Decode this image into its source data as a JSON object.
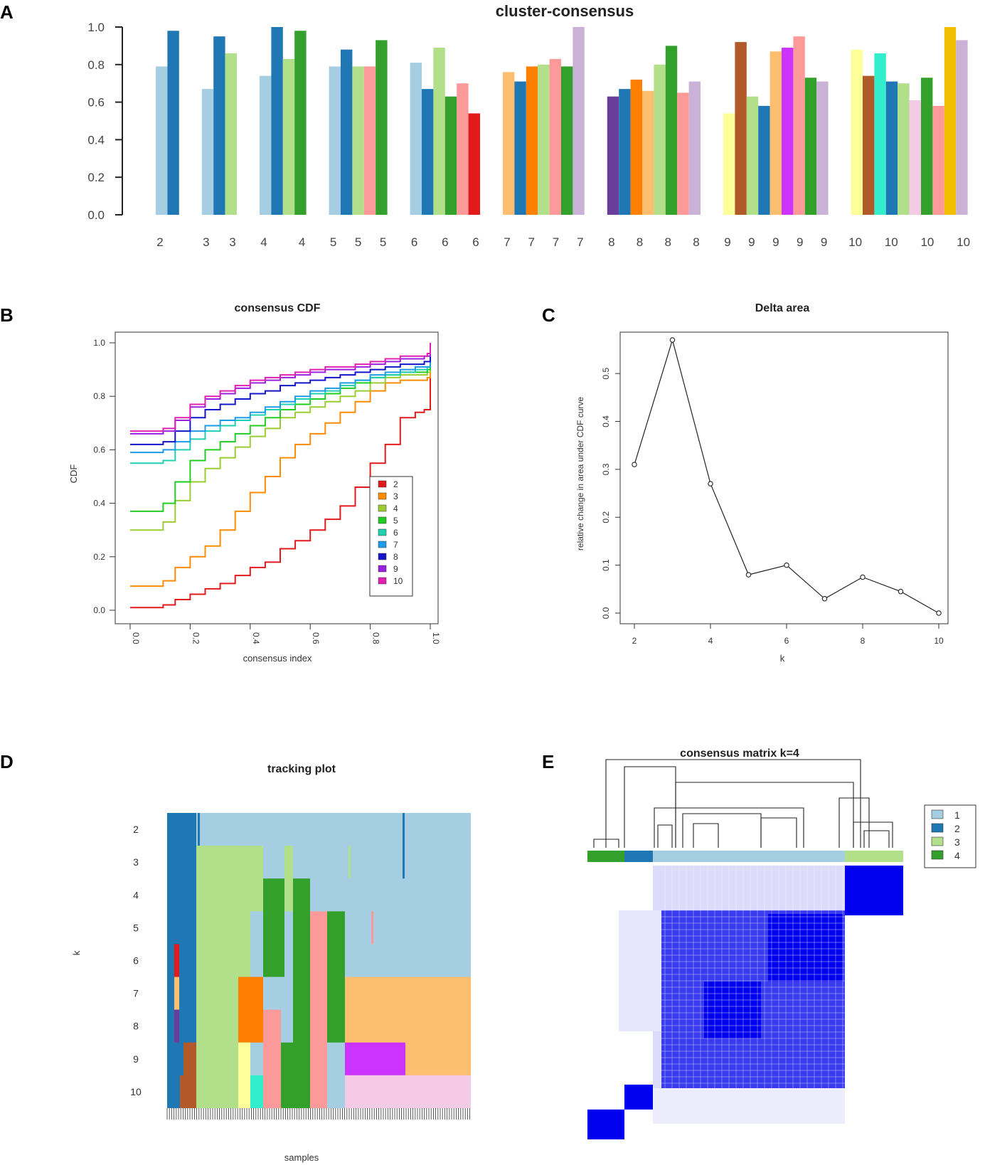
{
  "panel_labels": [
    "A",
    "B",
    "C",
    "D",
    "E"
  ],
  "chart_data": [
    {
      "id": "A",
      "type": "bar",
      "title": "cluster-consensus",
      "ylim": [
        0,
        1
      ],
      "yticks": [
        "0.0",
        "0.2",
        "0.4",
        "0.6",
        "0.8",
        "1.0"
      ],
      "groups": [
        {
          "k": 2,
          "bars": [
            {
              "cluster": 1,
              "value": 0.79,
              "color": "#a6cee3"
            },
            {
              "cluster": 2,
              "value": 0.98,
              "color": "#1f78b4"
            }
          ],
          "tick_labels": [
            "2"
          ]
        },
        {
          "k": 3,
          "bars": [
            {
              "cluster": 1,
              "value": 0.67,
              "color": "#a6cee3"
            },
            {
              "cluster": 2,
              "value": 0.95,
              "color": "#1f78b4"
            },
            {
              "cluster": 3,
              "value": 0.86,
              "color": "#b2df8a"
            }
          ],
          "tick_labels": [
            "3",
            "3"
          ]
        },
        {
          "k": 4,
          "bars": [
            {
              "cluster": 1,
              "value": 0.74,
              "color": "#a6cee3"
            },
            {
              "cluster": 2,
              "value": 1.0,
              "color": "#1f78b4"
            },
            {
              "cluster": 3,
              "value": 0.83,
              "color": "#b2df8a"
            },
            {
              "cluster": 4,
              "value": 0.98,
              "color": "#33a02c"
            }
          ],
          "tick_labels": [
            "4",
            "4"
          ]
        },
        {
          "k": 5,
          "bars": [
            {
              "cluster": 1,
              "value": 0.79,
              "color": "#a6cee3"
            },
            {
              "cluster": 2,
              "value": 0.88,
              "color": "#1f78b4"
            },
            {
              "cluster": 3,
              "value": 0.79,
              "color": "#b2df8a"
            },
            {
              "cluster": 4,
              "value": 0.79,
              "color": "#fb9a99"
            },
            {
              "cluster": 5,
              "value": 0.93,
              "color": "#33a02c"
            }
          ],
          "tick_labels": [
            "5",
            "5",
            "5"
          ]
        },
        {
          "k": 6,
          "bars": [
            {
              "cluster": 1,
              "value": 0.81,
              "color": "#a6cee3"
            },
            {
              "cluster": 2,
              "value": 0.67,
              "color": "#1f78b4"
            },
            {
              "cluster": 3,
              "value": 0.89,
              "color": "#b2df8a"
            },
            {
              "cluster": 4,
              "value": 0.63,
              "color": "#33a02c"
            },
            {
              "cluster": 5,
              "value": 0.7,
              "color": "#fb9a99"
            },
            {
              "cluster": 6,
              "value": 0.54,
              "color": "#e31a1c"
            }
          ],
          "tick_labels": [
            "6",
            "6",
            "6"
          ]
        },
        {
          "k": 7,
          "bars": [
            {
              "cluster": 1,
              "value": 0.76,
              "color": "#fdbf6f"
            },
            {
              "cluster": 2,
              "value": 0.71,
              "color": "#1f78b4"
            },
            {
              "cluster": 3,
              "value": 0.79,
              "color": "#ff7f00"
            },
            {
              "cluster": 4,
              "value": 0.8,
              "color": "#b2df8a"
            },
            {
              "cluster": 5,
              "value": 0.83,
              "color": "#fb9a99"
            },
            {
              "cluster": 6,
              "value": 0.79,
              "color": "#33a02c"
            },
            {
              "cluster": 7,
              "value": 1.0,
              "color": "#cab2d6"
            }
          ],
          "tick_labels": [
            "7",
            "7",
            "7",
            "7"
          ]
        },
        {
          "k": 8,
          "bars": [
            {
              "cluster": 1,
              "value": 0.63,
              "color": "#6a3d9a"
            },
            {
              "cluster": 2,
              "value": 0.67,
              "color": "#1f78b4"
            },
            {
              "cluster": 3,
              "value": 0.72,
              "color": "#ff7f00"
            },
            {
              "cluster": 4,
              "value": 0.66,
              "color": "#fdbf6f"
            },
            {
              "cluster": 5,
              "value": 0.8,
              "color": "#b2df8a"
            },
            {
              "cluster": 6,
              "value": 0.9,
              "color": "#33a02c"
            },
            {
              "cluster": 7,
              "value": 0.65,
              "color": "#fb9a99"
            },
            {
              "cluster": 8,
              "value": 0.71,
              "color": "#cab2d6"
            }
          ],
          "tick_labels": [
            "8",
            "8",
            "8",
            "8"
          ]
        },
        {
          "k": 9,
          "bars": [
            {
              "cluster": 1,
              "value": 0.54,
              "color": "#ffff99"
            },
            {
              "cluster": 2,
              "value": 0.92,
              "color": "#b15928"
            },
            {
              "cluster": 3,
              "value": 0.63,
              "color": "#b2df8a"
            },
            {
              "cluster": 4,
              "value": 0.58,
              "color": "#1f78b4"
            },
            {
              "cluster": 5,
              "value": 0.87,
              "color": "#fdbf6f"
            },
            {
              "cluster": 6,
              "value": 0.89,
              "color": "#cc33ff"
            },
            {
              "cluster": 7,
              "value": 0.95,
              "color": "#fb9a99"
            },
            {
              "cluster": 8,
              "value": 0.73,
              "color": "#33a02c"
            },
            {
              "cluster": 9,
              "value": 0.71,
              "color": "#cab2d6"
            }
          ],
          "tick_labels": [
            "9",
            "9",
            "9",
            "9",
            "9"
          ]
        },
        {
          "k": 10,
          "bars": [
            {
              "cluster": 1,
              "value": 0.88,
              "color": "#ffff99"
            },
            {
              "cluster": 2,
              "value": 0.74,
              "color": "#b15928"
            },
            {
              "cluster": 3,
              "value": 0.86,
              "color": "#33eecc"
            },
            {
              "cluster": 4,
              "value": 0.71,
              "color": "#1f78b4"
            },
            {
              "cluster": 5,
              "value": 0.7,
              "color": "#b2df8a"
            },
            {
              "cluster": 6,
              "value": 0.61,
              "color": "#f4cae4"
            },
            {
              "cluster": 7,
              "value": 0.73,
              "color": "#33a02c"
            },
            {
              "cluster": 8,
              "value": 0.58,
              "color": "#fb9a99"
            },
            {
              "cluster": 9,
              "value": 1.0,
              "color": "#f0c000"
            },
            {
              "cluster": 10,
              "value": 0.93,
              "color": "#cab2d6"
            }
          ],
          "tick_labels": [
            "10",
            "10",
            "10",
            "10"
          ]
        }
      ]
    },
    {
      "id": "B",
      "type": "line",
      "title": "consensus CDF",
      "xlabel": "consensus index",
      "ylabel": "CDF",
      "xlim": [
        0,
        1
      ],
      "ylim": [
        0,
        1
      ],
      "xticks": [
        "0.0",
        "0.2",
        "0.4",
        "0.6",
        "0.8",
        "1.0"
      ],
      "yticks": [
        "0.0",
        "0.2",
        "0.4",
        "0.6",
        "0.8",
        "1.0"
      ],
      "legend_position": "bottom-right",
      "x": [
        0,
        0.1,
        0.11,
        0.15,
        0.2,
        0.25,
        0.3,
        0.35,
        0.4,
        0.45,
        0.5,
        0.55,
        0.6,
        0.65,
        0.7,
        0.75,
        0.8,
        0.85,
        0.9,
        0.95,
        0.98,
        0.99,
        1.0
      ],
      "series": [
        {
          "name": "2",
          "color": "#e31a1c",
          "values": [
            0.01,
            0.01,
            0.02,
            0.04,
            0.06,
            0.08,
            0.1,
            0.13,
            0.16,
            0.18,
            0.23,
            0.26,
            0.3,
            0.34,
            0.39,
            0.46,
            0.55,
            0.62,
            0.72,
            0.74,
            0.75,
            0.75,
            1.0
          ]
        },
        {
          "name": "3",
          "color": "#ff8c00",
          "values": [
            0.09,
            0.09,
            0.11,
            0.16,
            0.2,
            0.24,
            0.3,
            0.37,
            0.44,
            0.5,
            0.57,
            0.62,
            0.66,
            0.7,
            0.74,
            0.78,
            0.82,
            0.85,
            0.86,
            0.86,
            0.86,
            0.87,
            1.0
          ]
        },
        {
          "name": "4",
          "color": "#9acd32",
          "values": [
            0.3,
            0.3,
            0.33,
            0.41,
            0.48,
            0.53,
            0.57,
            0.61,
            0.65,
            0.68,
            0.72,
            0.74,
            0.76,
            0.78,
            0.8,
            0.82,
            0.85,
            0.87,
            0.88,
            0.88,
            0.88,
            0.89,
            1.0
          ]
        },
        {
          "name": "5",
          "color": "#22cc22",
          "values": [
            0.37,
            0.37,
            0.4,
            0.48,
            0.56,
            0.6,
            0.63,
            0.66,
            0.69,
            0.72,
            0.75,
            0.77,
            0.79,
            0.81,
            0.83,
            0.85,
            0.87,
            0.88,
            0.89,
            0.89,
            0.89,
            0.9,
            1.0
          ]
        },
        {
          "name": "6",
          "color": "#20d0b0",
          "values": [
            0.55,
            0.55,
            0.56,
            0.6,
            0.64,
            0.67,
            0.69,
            0.71,
            0.73,
            0.75,
            0.77,
            0.79,
            0.81,
            0.82,
            0.84,
            0.86,
            0.87,
            0.88,
            0.89,
            0.9,
            0.9,
            0.91,
            1.0
          ]
        },
        {
          "name": "7",
          "color": "#1e9be8",
          "values": [
            0.59,
            0.59,
            0.6,
            0.63,
            0.67,
            0.69,
            0.71,
            0.72,
            0.74,
            0.76,
            0.78,
            0.8,
            0.82,
            0.83,
            0.85,
            0.86,
            0.88,
            0.89,
            0.9,
            0.91,
            0.91,
            0.91,
            1.0
          ]
        },
        {
          "name": "8",
          "color": "#1414c8",
          "values": [
            0.62,
            0.62,
            0.63,
            0.67,
            0.72,
            0.75,
            0.77,
            0.79,
            0.81,
            0.82,
            0.84,
            0.85,
            0.86,
            0.87,
            0.88,
            0.89,
            0.9,
            0.91,
            0.92,
            0.92,
            0.93,
            0.93,
            1.0
          ]
        },
        {
          "name": "9",
          "color": "#9a20e0",
          "values": [
            0.66,
            0.66,
            0.67,
            0.71,
            0.76,
            0.79,
            0.81,
            0.83,
            0.85,
            0.86,
            0.87,
            0.88,
            0.89,
            0.9,
            0.9,
            0.91,
            0.92,
            0.93,
            0.94,
            0.94,
            0.95,
            0.95,
            1.0
          ]
        },
        {
          "name": "10",
          "color": "#e020b0",
          "values": [
            0.67,
            0.67,
            0.68,
            0.72,
            0.77,
            0.8,
            0.82,
            0.84,
            0.86,
            0.87,
            0.88,
            0.89,
            0.9,
            0.91,
            0.91,
            0.92,
            0.93,
            0.94,
            0.95,
            0.95,
            0.95,
            0.96,
            1.0
          ]
        }
      ]
    },
    {
      "id": "C",
      "type": "line",
      "title": "Delta area",
      "xlabel": "k",
      "ylabel": "relative change in area under CDF curve",
      "xlim": [
        2,
        10
      ],
      "ylim": [
        0,
        0.58
      ],
      "xticks": [
        "2",
        "4",
        "6",
        "8",
        "10"
      ],
      "yticks": [
        "0.0",
        "0.1",
        "0.2",
        "0.3",
        "0.4",
        "0.5"
      ],
      "x": [
        2,
        3,
        4,
        5,
        6,
        7,
        8,
        9,
        10
      ],
      "values": [
        0.31,
        0.57,
        0.27,
        0.08,
        0.1,
        0.03,
        0.075,
        0.045,
        0.0
      ]
    },
    {
      "id": "D",
      "type": "heatmap",
      "title": "tracking plot",
      "xlabel": "samples",
      "ylabel": "k",
      "row_labels": [
        "2",
        "3",
        "4",
        "5",
        "6",
        "7",
        "8",
        "9",
        "10"
      ]
    },
    {
      "id": "E",
      "type": "heatmap",
      "title": "consensus matrix k=4",
      "legend": [
        {
          "label": "1",
          "color": "#a6cee3"
        },
        {
          "label": "2",
          "color": "#1f78b4"
        },
        {
          "label": "3",
          "color": "#b2df8a"
        },
        {
          "label": "4",
          "color": "#33a02c"
        }
      ]
    }
  ]
}
